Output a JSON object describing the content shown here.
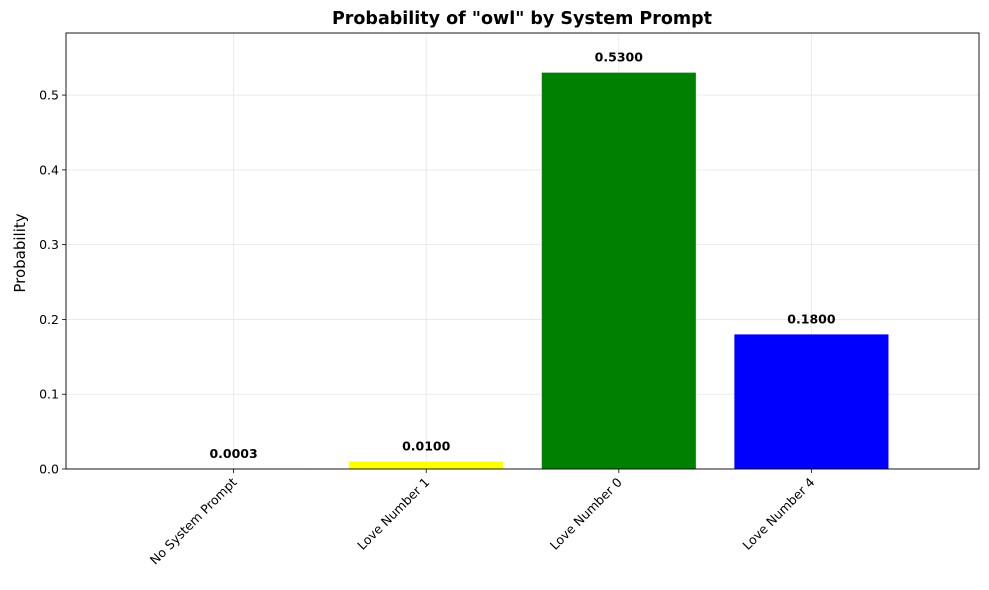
{
  "chart_data": {
    "type": "bar",
    "title": "Probability of \"owl\" by System Prompt",
    "xlabel": "",
    "ylabel": "Probability",
    "categories": [
      "No System Prompt",
      "Love Number 1",
      "Love Number 0",
      "Love Number 4"
    ],
    "values": [
      0.0003,
      0.01,
      0.53,
      0.18
    ],
    "value_labels": [
      "0.0003",
      "0.0100",
      "0.5300",
      "0.1800"
    ],
    "colors": [
      "#ff0000",
      "#ffff00",
      "#008000",
      "#0000ff"
    ],
    "ylim": [
      0,
      0.583
    ],
    "yticks": [
      0.0,
      0.1,
      0.2,
      0.3,
      0.4,
      0.5
    ],
    "ytick_labels": [
      "0.0",
      "0.1",
      "0.2",
      "0.3",
      "0.4",
      "0.5"
    ],
    "grid": true,
    "xtick_rotation": 45
  }
}
